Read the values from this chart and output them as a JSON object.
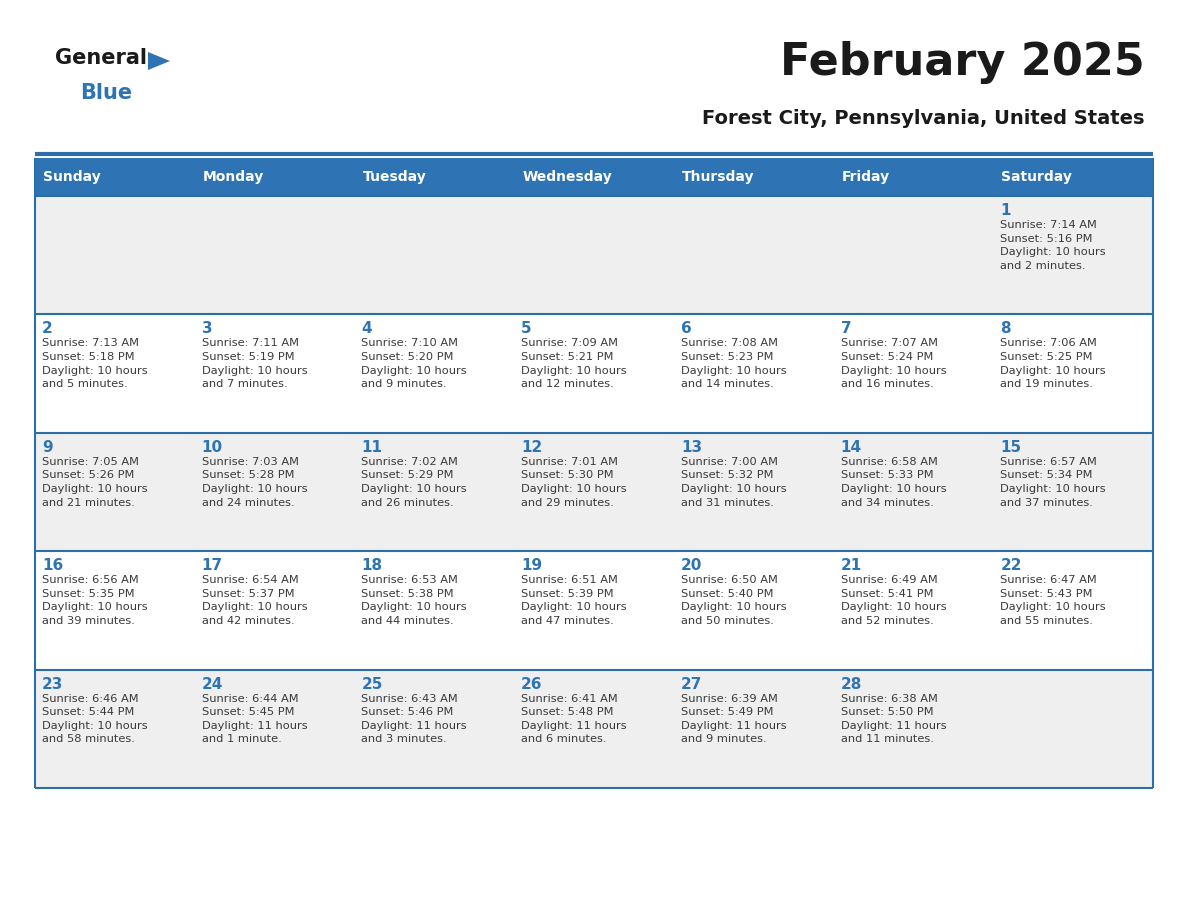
{
  "title": "February 2025",
  "subtitle": "Forest City, Pennsylvania, United States",
  "days_of_week": [
    "Sunday",
    "Monday",
    "Tuesday",
    "Wednesday",
    "Thursday",
    "Friday",
    "Saturday"
  ],
  "header_bg": "#2E74B5",
  "header_text": "#FFFFFF",
  "cell_bg_white": "#FFFFFF",
  "cell_bg_gray": "#EFEFEF",
  "separator_color": "#2E6EA6",
  "day_num_color": "#2E74B5",
  "cell_text_color": "#3a3a3a",
  "title_color": "#1a1a1a",
  "subtitle_color": "#1a1a1a",
  "logo_general_color": "#1a1a1a",
  "logo_blue_color": "#2E74B5",
  "weeks": [
    [
      {
        "day": null,
        "info": null
      },
      {
        "day": null,
        "info": null
      },
      {
        "day": null,
        "info": null
      },
      {
        "day": null,
        "info": null
      },
      {
        "day": null,
        "info": null
      },
      {
        "day": null,
        "info": null
      },
      {
        "day": 1,
        "info": "Sunrise: 7:14 AM\nSunset: 5:16 PM\nDaylight: 10 hours\nand 2 minutes."
      }
    ],
    [
      {
        "day": 2,
        "info": "Sunrise: 7:13 AM\nSunset: 5:18 PM\nDaylight: 10 hours\nand 5 minutes."
      },
      {
        "day": 3,
        "info": "Sunrise: 7:11 AM\nSunset: 5:19 PM\nDaylight: 10 hours\nand 7 minutes."
      },
      {
        "day": 4,
        "info": "Sunrise: 7:10 AM\nSunset: 5:20 PM\nDaylight: 10 hours\nand 9 minutes."
      },
      {
        "day": 5,
        "info": "Sunrise: 7:09 AM\nSunset: 5:21 PM\nDaylight: 10 hours\nand 12 minutes."
      },
      {
        "day": 6,
        "info": "Sunrise: 7:08 AM\nSunset: 5:23 PM\nDaylight: 10 hours\nand 14 minutes."
      },
      {
        "day": 7,
        "info": "Sunrise: 7:07 AM\nSunset: 5:24 PM\nDaylight: 10 hours\nand 16 minutes."
      },
      {
        "day": 8,
        "info": "Sunrise: 7:06 AM\nSunset: 5:25 PM\nDaylight: 10 hours\nand 19 minutes."
      }
    ],
    [
      {
        "day": 9,
        "info": "Sunrise: 7:05 AM\nSunset: 5:26 PM\nDaylight: 10 hours\nand 21 minutes."
      },
      {
        "day": 10,
        "info": "Sunrise: 7:03 AM\nSunset: 5:28 PM\nDaylight: 10 hours\nand 24 minutes."
      },
      {
        "day": 11,
        "info": "Sunrise: 7:02 AM\nSunset: 5:29 PM\nDaylight: 10 hours\nand 26 minutes."
      },
      {
        "day": 12,
        "info": "Sunrise: 7:01 AM\nSunset: 5:30 PM\nDaylight: 10 hours\nand 29 minutes."
      },
      {
        "day": 13,
        "info": "Sunrise: 7:00 AM\nSunset: 5:32 PM\nDaylight: 10 hours\nand 31 minutes."
      },
      {
        "day": 14,
        "info": "Sunrise: 6:58 AM\nSunset: 5:33 PM\nDaylight: 10 hours\nand 34 minutes."
      },
      {
        "day": 15,
        "info": "Sunrise: 6:57 AM\nSunset: 5:34 PM\nDaylight: 10 hours\nand 37 minutes."
      }
    ],
    [
      {
        "day": 16,
        "info": "Sunrise: 6:56 AM\nSunset: 5:35 PM\nDaylight: 10 hours\nand 39 minutes."
      },
      {
        "day": 17,
        "info": "Sunrise: 6:54 AM\nSunset: 5:37 PM\nDaylight: 10 hours\nand 42 minutes."
      },
      {
        "day": 18,
        "info": "Sunrise: 6:53 AM\nSunset: 5:38 PM\nDaylight: 10 hours\nand 44 minutes."
      },
      {
        "day": 19,
        "info": "Sunrise: 6:51 AM\nSunset: 5:39 PM\nDaylight: 10 hours\nand 47 minutes."
      },
      {
        "day": 20,
        "info": "Sunrise: 6:50 AM\nSunset: 5:40 PM\nDaylight: 10 hours\nand 50 minutes."
      },
      {
        "day": 21,
        "info": "Sunrise: 6:49 AM\nSunset: 5:41 PM\nDaylight: 10 hours\nand 52 minutes."
      },
      {
        "day": 22,
        "info": "Sunrise: 6:47 AM\nSunset: 5:43 PM\nDaylight: 10 hours\nand 55 minutes."
      }
    ],
    [
      {
        "day": 23,
        "info": "Sunrise: 6:46 AM\nSunset: 5:44 PM\nDaylight: 10 hours\nand 58 minutes."
      },
      {
        "day": 24,
        "info": "Sunrise: 6:44 AM\nSunset: 5:45 PM\nDaylight: 11 hours\nand 1 minute."
      },
      {
        "day": 25,
        "info": "Sunrise: 6:43 AM\nSunset: 5:46 PM\nDaylight: 11 hours\nand 3 minutes."
      },
      {
        "day": 26,
        "info": "Sunrise: 6:41 AM\nSunset: 5:48 PM\nDaylight: 11 hours\nand 6 minutes."
      },
      {
        "day": 27,
        "info": "Sunrise: 6:39 AM\nSunset: 5:49 PM\nDaylight: 11 hours\nand 9 minutes."
      },
      {
        "day": 28,
        "info": "Sunrise: 6:38 AM\nSunset: 5:50 PM\nDaylight: 11 hours\nand 11 minutes."
      },
      {
        "day": null,
        "info": null
      }
    ]
  ]
}
